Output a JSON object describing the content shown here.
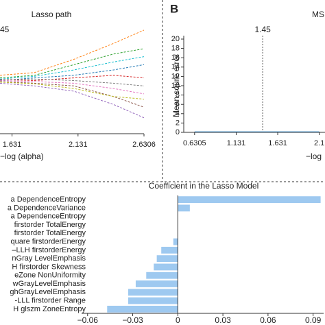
{
  "chart_data": [
    {
      "type": "line",
      "title": "Lasso path",
      "annotation": "45",
      "xlabel": "−log (alpha)",
      "x": [
        1.54,
        1.8,
        2.1,
        2.4,
        2.6306
      ],
      "xlim": [
        1.54,
        2.6306
      ],
      "ylim": [
        -1,
        1
      ],
      "xticks": [
        1.631,
        2.131,
        2.6306
      ],
      "dashed": true,
      "series": [
        {
          "color": "#ff7f0e",
          "values": [
            0.1,
            0.15,
            0.4,
            0.7,
            0.95
          ]
        },
        {
          "color": "#2ca02c",
          "values": [
            0.05,
            0.1,
            0.3,
            0.5,
            0.6
          ]
        },
        {
          "color": "#1f77b4",
          "values": [
            0.0,
            0.05,
            0.1,
            0.2,
            0.3
          ]
        },
        {
          "color": "#d62728",
          "values": [
            0.02,
            0.0,
            0.05,
            0.1,
            0.05
          ]
        },
        {
          "color": "#9467bd",
          "values": [
            -0.05,
            -0.1,
            -0.2,
            -0.45,
            -0.7
          ]
        },
        {
          "color": "#8c564b",
          "values": [
            -0.02,
            -0.05,
            -0.1,
            -0.3,
            -0.5
          ]
        },
        {
          "color": "#e377c2",
          "values": [
            0.0,
            -0.02,
            -0.05,
            -0.15,
            -0.25
          ]
        },
        {
          "color": "#17becf",
          "values": [
            0.03,
            0.08,
            0.2,
            0.35,
            0.45
          ]
        },
        {
          "color": "#bcbd22",
          "values": [
            -0.03,
            -0.06,
            -0.15,
            -0.3,
            -0.35
          ]
        },
        {
          "color": "#7f7f7f",
          "values": [
            0.01,
            0.03,
            0.0,
            -0.05,
            -0.1
          ]
        }
      ]
    },
    {
      "type": "line",
      "panel": "B",
      "title": "MS",
      "annotation": "1.45",
      "vline": 1.45,
      "ylabel": "Mean squre error",
      "xlabel": "−log",
      "x": [
        0.6305,
        1.131,
        1.631,
        2.131
      ],
      "xlim": [
        0.5,
        2.2
      ],
      "ylim": [
        0,
        20
      ],
      "xticks": [
        0.6305,
        1.131,
        1.631,
        {
          "value": 2.131,
          "label": "2.1"
        }
      ],
      "yticks": [
        0,
        2,
        4,
        6,
        8,
        10,
        12,
        14,
        16,
        18,
        20
      ],
      "series": [
        {
          "color": "#1f77b4",
          "values": [
            0.1,
            0.1,
            0.1,
            0.1
          ]
        }
      ]
    },
    {
      "type": "bar",
      "orientation": "horizontal",
      "title": "Coefficient in the Lasso Model",
      "color": "#9ec9f0",
      "categories": [
        "a DependenceEntropy",
        "a DependenceVariance",
        "a DependenceEntropy",
        "firstorder TotalEnergy",
        "firstorder TotalEnergy",
        "quare firstorderEnergy",
        "–LLH firstorderEnergy",
        "nGray LevelEmphasis",
        "H firstorder Skewness",
        "eZone NonUniformity",
        "wGrayLevelEmphasis",
        "ghGrayLevelEmphasis",
        "-LLL firstorder Range",
        "H glszm ZoneEntropy"
      ],
      "values": [
        0.095,
        0.008,
        0,
        0,
        0,
        -0.003,
        -0.011,
        -0.014,
        -0.016,
        -0.021,
        -0.028,
        -0.033,
        -0.033,
        -0.047
      ],
      "xlim": [
        -0.064,
        0.097
      ],
      "xticks": [
        {
          "value": -0.06,
          "label": "−0.06"
        },
        {
          "value": -0.03,
          "label": "−0.03"
        },
        0,
        0.03,
        0.06,
        0.09
      ]
    }
  ]
}
